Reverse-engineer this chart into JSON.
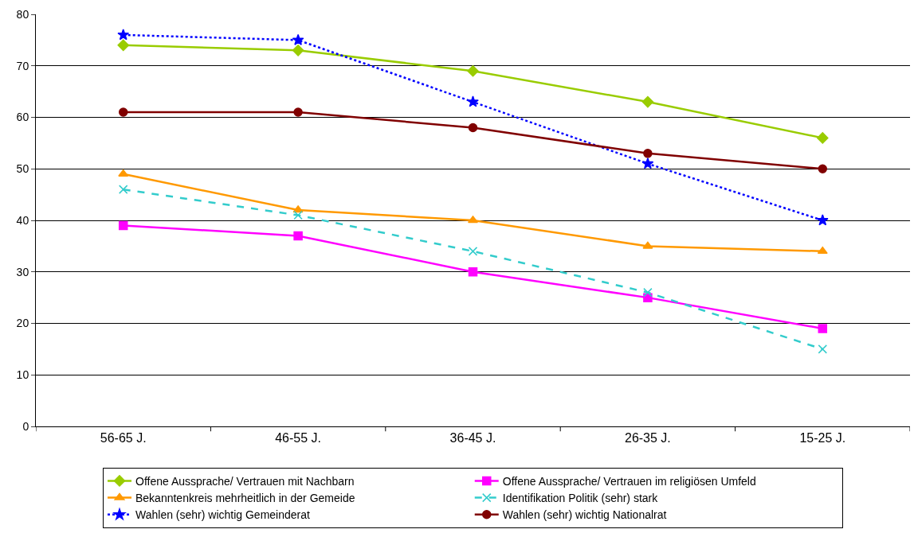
{
  "chart_data": {
    "type": "line",
    "categories": [
      "56-65 J.",
      "46-55 J.",
      "36-45 J.",
      "26-35 J.",
      "15-25 J."
    ],
    "ylim": [
      0,
      80
    ],
    "yticks": [
      0,
      10,
      20,
      30,
      40,
      50,
      60,
      70,
      80
    ],
    "grid": "y",
    "legend": "bottom",
    "series": [
      {
        "name": "Offene Aussprache/ Vertrauen mit Nachbarn",
        "color": "#99cc00",
        "marker": "diamond",
        "line_style": "solid",
        "values": [
          74,
          73,
          69,
          63,
          56
        ]
      },
      {
        "name": "Offene Aussprache/ Vertrauen im religiösen Umfeld",
        "color": "#ff00ff",
        "marker": "square",
        "line_style": "solid",
        "values": [
          39,
          37,
          30,
          25,
          19
        ]
      },
      {
        "name": "Bekanntenkreis mehrheitlich in der Gemeide",
        "color": "#ff9900",
        "marker": "triangle",
        "line_style": "solid",
        "values": [
          49,
          42,
          40,
          35,
          34
        ]
      },
      {
        "name": "Identifikation Politik (sehr) stark",
        "color": "#33cccc",
        "marker": "cross",
        "line_style": "dashed",
        "values": [
          46,
          41,
          34,
          26,
          15
        ]
      },
      {
        "name": "Wahlen (sehr) wichtig Gemeinderat",
        "color": "#0000ff",
        "marker": "star",
        "line_style": "dotted",
        "values": [
          76,
          75,
          63,
          51,
          40
        ]
      },
      {
        "name": "Wahlen (sehr) wichtig Nationalrat",
        "color": "#800000",
        "marker": "circle",
        "line_style": "solid",
        "values": [
          61,
          61,
          58,
          53,
          50
        ]
      }
    ]
  }
}
